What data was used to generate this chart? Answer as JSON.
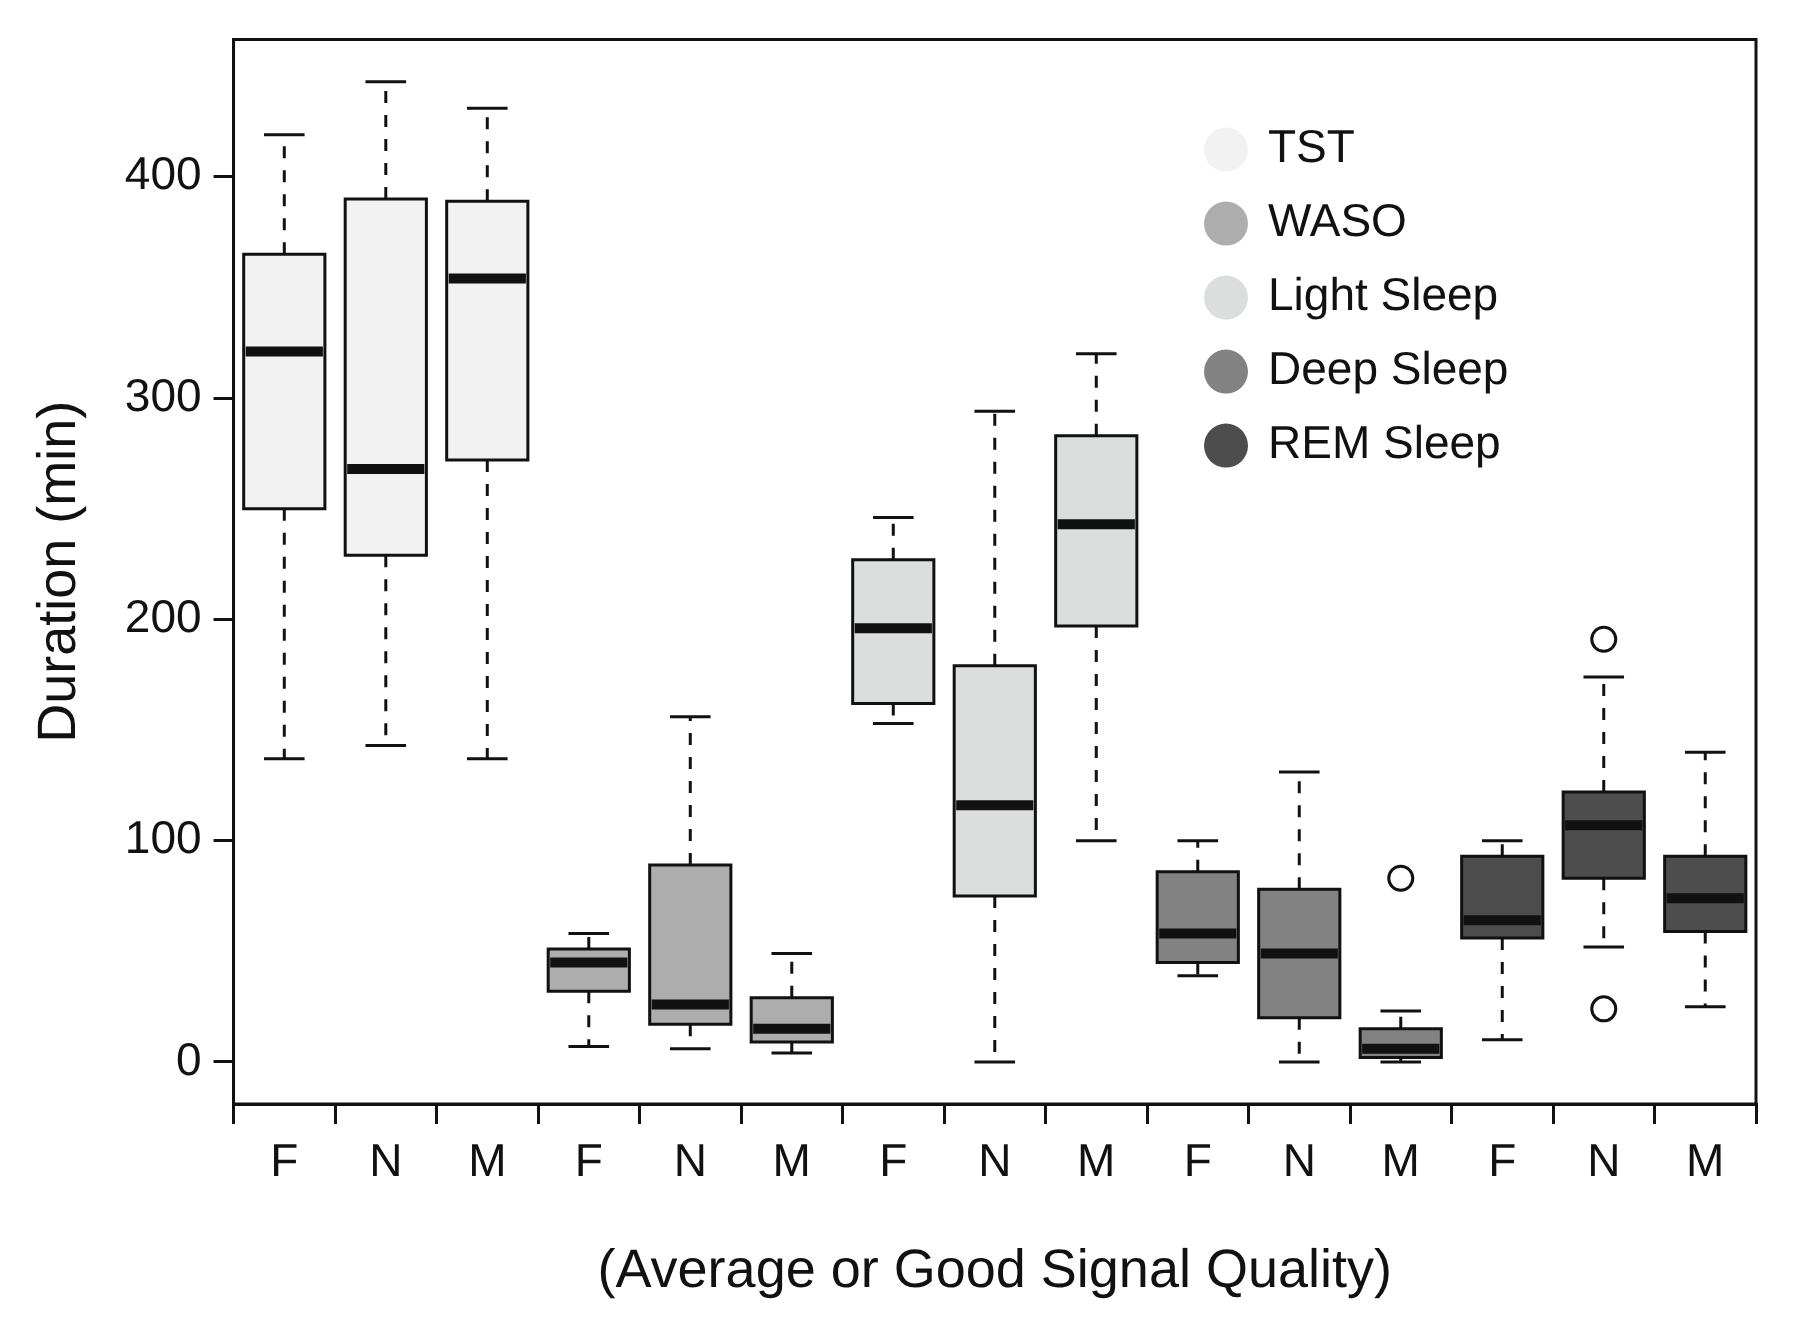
{
  "chart_data": {
    "type": "box",
    "ylabel": "Duration (min)",
    "xlabel": "(Average or Good Signal Quality)",
    "categories": [
      "F",
      "N",
      "M",
      "F",
      "N",
      "M",
      "F",
      "N",
      "M",
      "F",
      "N",
      "M",
      "F",
      "N",
      "M"
    ],
    "ylim": [
      -19,
      462
    ],
    "yticks": [
      0,
      100,
      200,
      300,
      400
    ],
    "grid": false,
    "legend": "top right",
    "marker": "circle",
    "series": [
      {
        "name": "TST",
        "color": "#f2f2f2",
        "boxes": [
          {
            "low": 137,
            "q1": 250,
            "median": 321,
            "q3": 365,
            "high": 419
          },
          {
            "low": 143,
            "q1": 229,
            "median": 268,
            "q3": 390,
            "high": 443
          },
          {
            "low": 137,
            "q1": 272,
            "median": 354,
            "q3": 389,
            "high": 431
          },
          null,
          null,
          null,
          null,
          null,
          null,
          null,
          null,
          null,
          null,
          null,
          null
        ]
      },
      {
        "name": "WASO",
        "color": "#adadad",
        "boxes": [
          null,
          null,
          null,
          {
            "low": 7,
            "q1": 32,
            "median": 45,
            "q3": 51,
            "high": 58
          },
          {
            "low": 6,
            "q1": 17,
            "median": 26,
            "q3": 89,
            "high": 156
          },
          {
            "low": 4,
            "q1": 9,
            "median": 15,
            "q3": 29,
            "high": 49
          },
          null,
          null,
          null,
          null,
          null,
          null,
          null,
          null,
          null
        ]
      },
      {
        "name": "Light Sleep",
        "color": "#dcdddd",
        "boxes": [
          null,
          null,
          null,
          null,
          null,
          null,
          {
            "low": 153,
            "q1": 162,
            "median": 196,
            "q3": 227,
            "high": 246
          },
          {
            "low": 0,
            "q1": 75,
            "median": 116,
            "q3": 179,
            "high": 294
          },
          {
            "low": 100,
            "q1": 197,
            "median": 243,
            "q3": 283,
            "high": 320
          },
          null,
          null,
          null,
          null,
          null,
          null
        ]
      },
      {
        "name": "Deep Sleep",
        "color": "#828282",
        "boxes": [
          null,
          null,
          null,
          null,
          null,
          null,
          null,
          null,
          null,
          {
            "low": 39,
            "q1": 45,
            "median": 58,
            "q3": 86,
            "high": 100
          },
          {
            "low": 0,
            "q1": 20,
            "median": 49,
            "q3": 78,
            "high": 131
          },
          {
            "low": 0,
            "q1": 2,
            "median": 6,
            "q3": 15,
            "high": 23,
            "outliers": [
              83
            ]
          },
          null,
          null,
          null
        ]
      },
      {
        "name": "REM Sleep",
        "color": "#4d4d4d",
        "boxes": [
          null,
          null,
          null,
          null,
          null,
          null,
          null,
          null,
          null,
          null,
          null,
          null,
          {
            "low": 10,
            "q1": 56,
            "median": 64,
            "q3": 93,
            "high": 100
          },
          {
            "low": 52,
            "q1": 83,
            "median": 107,
            "q3": 122,
            "high": 174,
            "outliers": [
              191,
              24
            ]
          },
          {
            "low": 25,
            "q1": 59,
            "median": 74,
            "q3": 93,
            "high": 140
          }
        ]
      }
    ]
  }
}
